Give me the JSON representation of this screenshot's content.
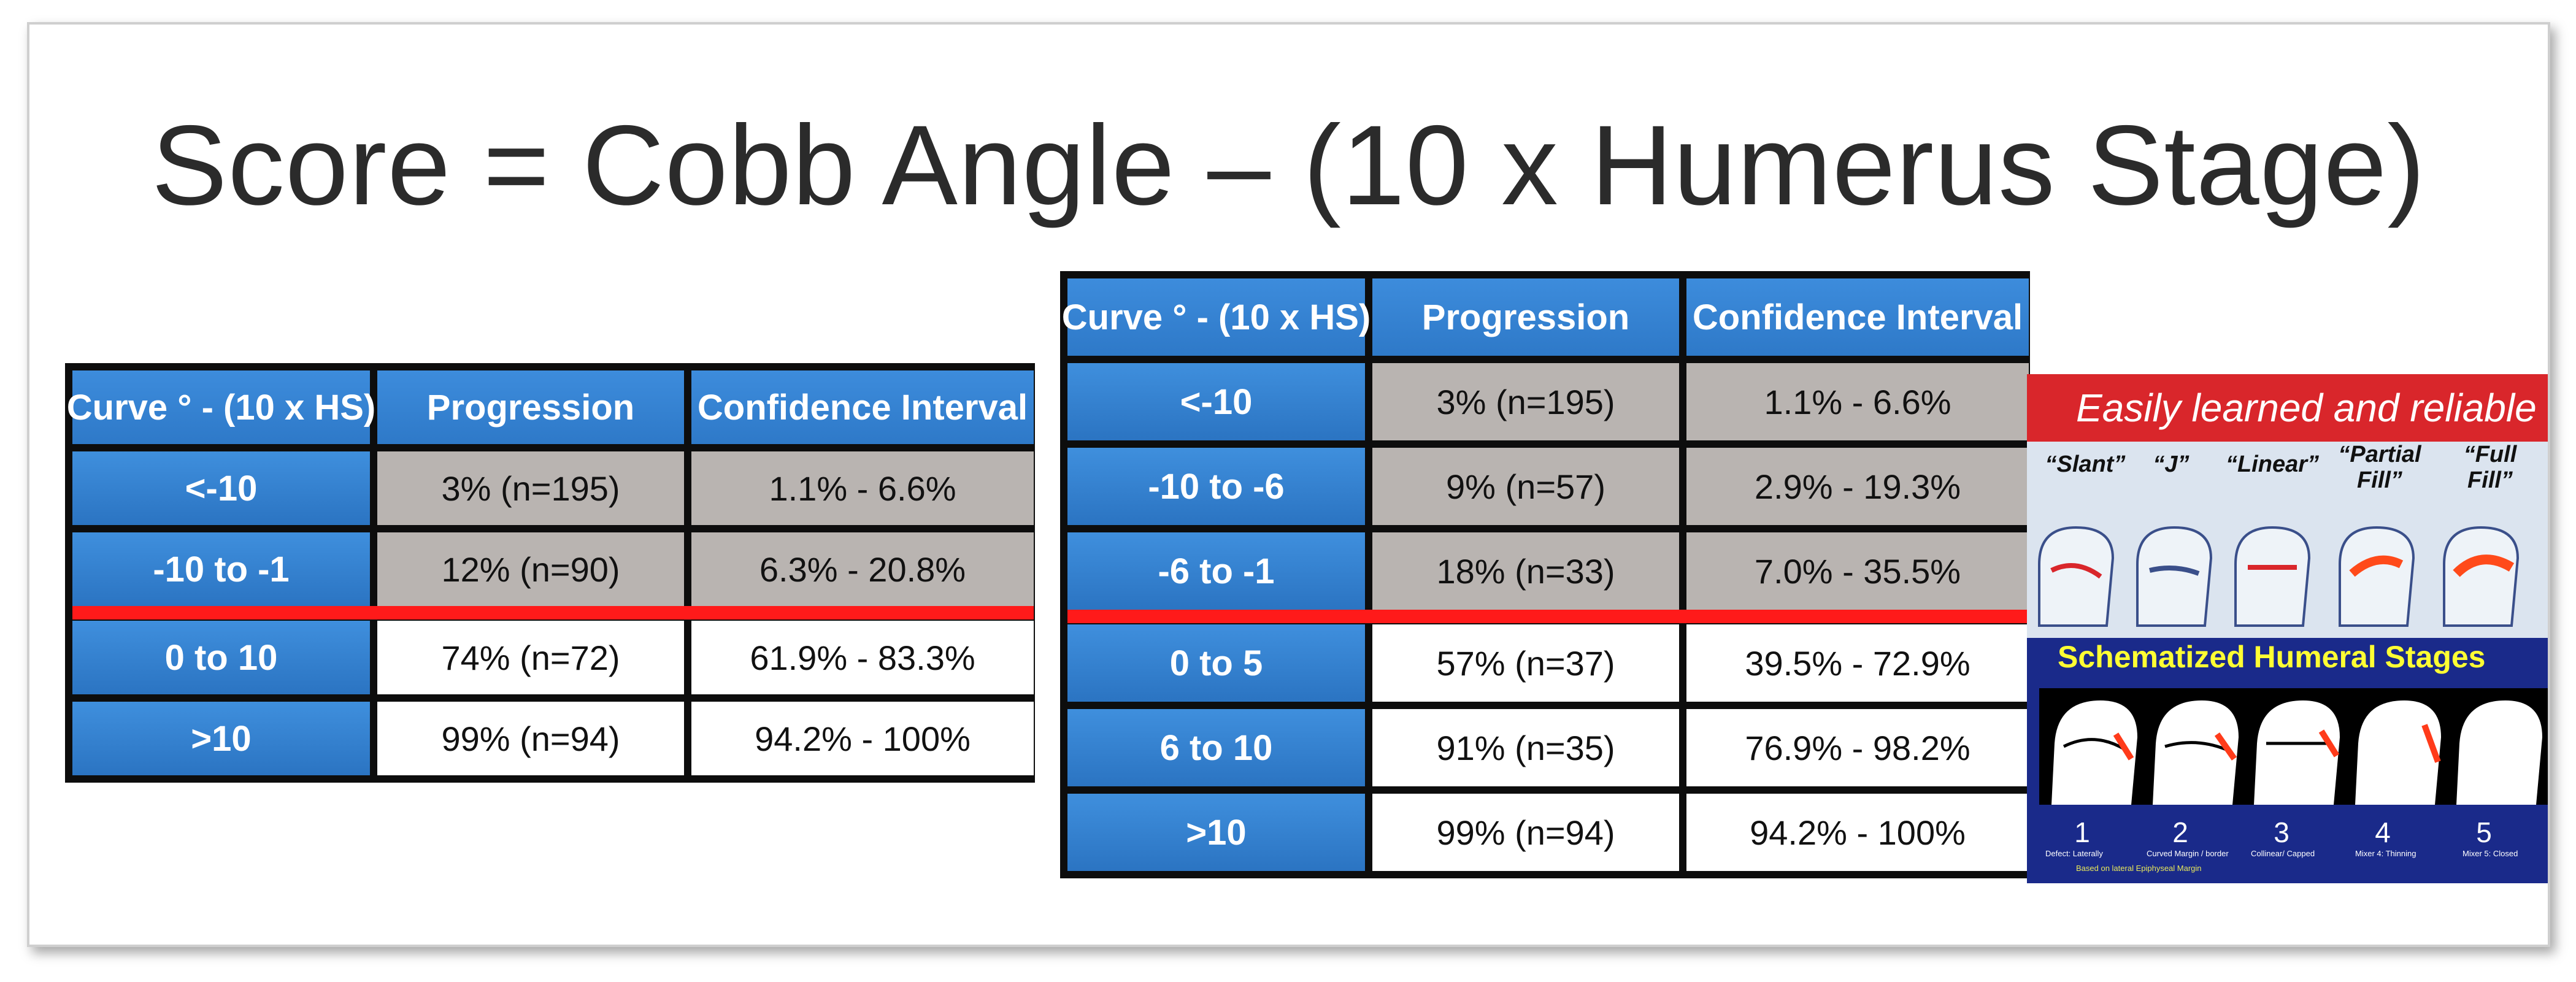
{
  "title": "Score = Cobb Angle – (10 x Humerus Stage)",
  "colors": {
    "header_blue": "#2e79c8",
    "gray_cell": "#b9b4b1",
    "red_divider": "#ff1a1a",
    "border_black": "#0d0d0d"
  },
  "table_left": {
    "headers": [
      "Curve ° - (10 x HS)",
      "Progression",
      "Confidence Interval"
    ],
    "rows": [
      {
        "range": "<-10",
        "progression": "3% (n=195)",
        "ci": "1.1% - 6.6%"
      },
      {
        "range": "-10 to -1",
        "progression": "12% (n=90)",
        "ci": "6.3% - 20.8%"
      },
      {
        "range": "0 to 10",
        "progression": "74% (n=72)",
        "ci": "61.9% - 83.3%"
      },
      {
        "range": ">10",
        "progression": "99% (n=94)",
        "ci": "94.2% - 100%"
      }
    ]
  },
  "table_right": {
    "headers": [
      "Curve ° - (10 x HS)",
      "Progression",
      "Confidence Interval"
    ],
    "rows": [
      {
        "range": "<-10",
        "progression": "3% (n=195)",
        "ci": "1.1% - 6.6%"
      },
      {
        "range": "-10 to -6",
        "progression": "9% (n=57)",
        "ci": "2.9% - 19.3%"
      },
      {
        "range": "-6 to -1",
        "progression": "18% (n=33)",
        "ci": "7.0% - 35.5%"
      },
      {
        "range": "0 to 5",
        "progression": "57% (n=37)",
        "ci": "39.5% - 72.9%"
      },
      {
        "range": "6 to 10",
        "progression": "91% (n=35)",
        "ci": "76.9% - 98.2%"
      },
      {
        "range": ">10",
        "progression": "99% (n=94)",
        "ci": "94.2% - 100%"
      }
    ]
  },
  "stages_image": {
    "banner": "Easily learned and reliable",
    "stage_names": [
      "“Slant”",
      "“J”",
      "“Linear”",
      "“Partial\nFill”",
      "“Full\nFill”"
    ],
    "schematized_label": "Schematized Humeral Stages",
    "numbers": [
      "1",
      "2",
      "3",
      "4",
      "5"
    ],
    "captions": [
      "Defect: Laterally",
      "Curved Margin / border",
      "Collinear/ Capped",
      "Mixer 4: Thinning",
      "Mixer 5: Closed"
    ],
    "note": "Based on lateral Epiphyseal Margin"
  }
}
